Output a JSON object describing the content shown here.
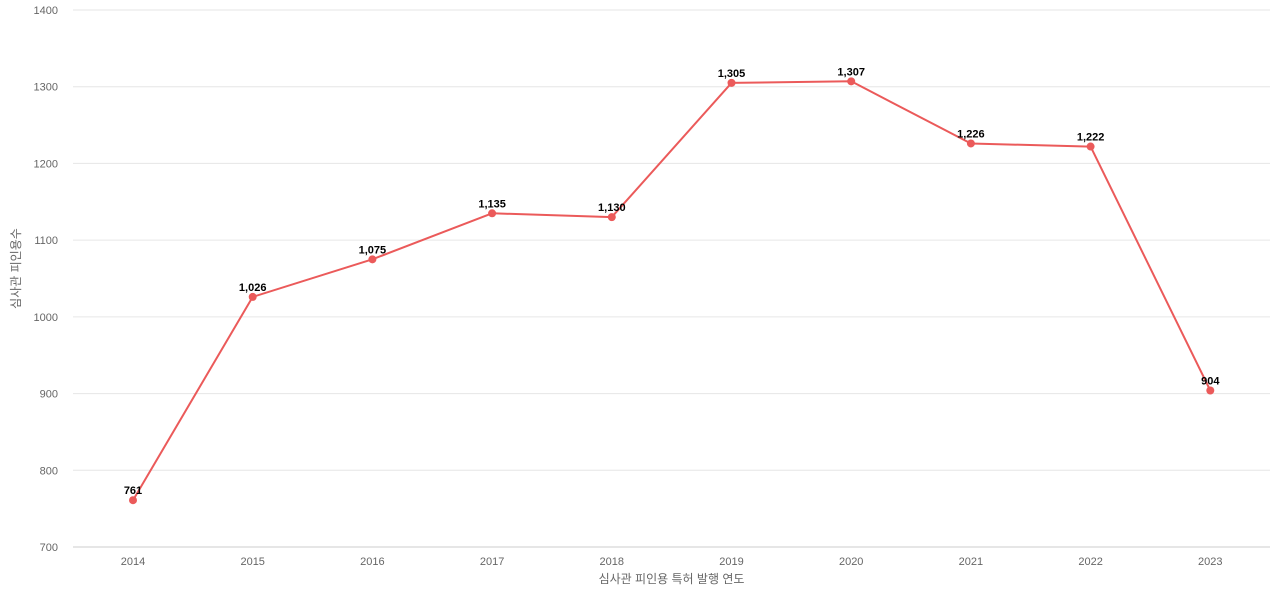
{
  "chart_data": {
    "type": "line",
    "xlabel": "심사관 피인용 특허 발행 연도",
    "ylabel": "심사관 피인용수",
    "ylim": [
      700,
      1400
    ],
    "yticks": [
      700,
      800,
      900,
      1000,
      1100,
      1200,
      1300,
      1400
    ],
    "grid": true,
    "categories": [
      "2014",
      "2015",
      "2016",
      "2017",
      "2018",
      "2019",
      "2020",
      "2021",
      "2022",
      "2023"
    ],
    "series": [
      {
        "values": [
          761,
          1026,
          1075,
          1135,
          1130,
          1305,
          1307,
          1226,
          1222,
          904
        ],
        "labels": [
          "761",
          "1,026",
          "1,075",
          "1,135",
          "1,130",
          "1,305",
          "1,307",
          "1,226",
          "1,222",
          "904"
        ],
        "color": "#eb5a5a"
      }
    ],
    "colors": {
      "gridline": "#e6e6e6",
      "axis_line": "#cccccc",
      "tick_text": "#666666",
      "label_text": "#000000"
    }
  }
}
